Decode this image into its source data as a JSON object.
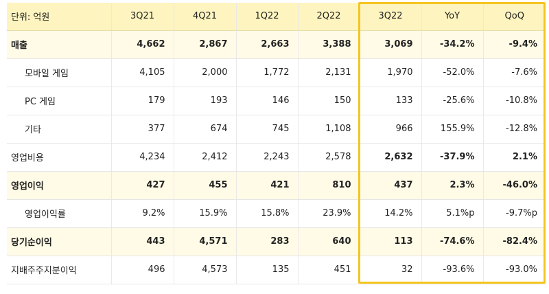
{
  "header": {
    "unit_label": "단위: 억원",
    "columns": [
      "3Q21",
      "4Q21",
      "1Q22",
      "2Q22",
      "3Q22",
      "YoY",
      "QoQ"
    ]
  },
  "rows": [
    {
      "label": "매출",
      "values": [
        "4,662",
        "2,867",
        "2,663",
        "3,388",
        "3,069",
        "-34.2%",
        "-9.4%"
      ]
    },
    {
      "label": "모바일 게임",
      "values": [
        "4,105",
        "2,000",
        "1,772",
        "2,131",
        "1,970",
        "-52.0%",
        "-7.6%"
      ]
    },
    {
      "label": "PC 게임",
      "values": [
        "179",
        "193",
        "146",
        "150",
        "133",
        "-25.6%",
        "-10.8%"
      ]
    },
    {
      "label": "기타",
      "values": [
        "377",
        "674",
        "745",
        "1,108",
        "966",
        "155.9%",
        "-12.8%"
      ]
    },
    {
      "label": "영업비용",
      "values": [
        "4,234",
        "2,412",
        "2,243",
        "2,578",
        "2,632",
        "-37.9%",
        "2.1%"
      ]
    },
    {
      "label": "영업이익",
      "values": [
        "427",
        "455",
        "421",
        "810",
        "437",
        "2.3%",
        "-46.0%"
      ]
    },
    {
      "label": "영업이익률",
      "values": [
        "9.2%",
        "15.9%",
        "15.8%",
        "23.9%",
        "14.2%",
        "5.1%p",
        "-9.7%p"
      ]
    },
    {
      "label": "당기순이익",
      "values": [
        "443",
        "4,571",
        "283",
        "640",
        "113",
        "-74.6%",
        "-82.4%"
      ]
    },
    {
      "label": "지배주주지분이익",
      "values": [
        "496",
        "4,573",
        "135",
        "451",
        "32",
        "-93.6%",
        "-93.0%"
      ]
    }
  ],
  "colors": {
    "header_bg": "#fdf4bf",
    "highlight_row_bg": "#fffbe6",
    "highlight_border": "#f5c51f"
  }
}
